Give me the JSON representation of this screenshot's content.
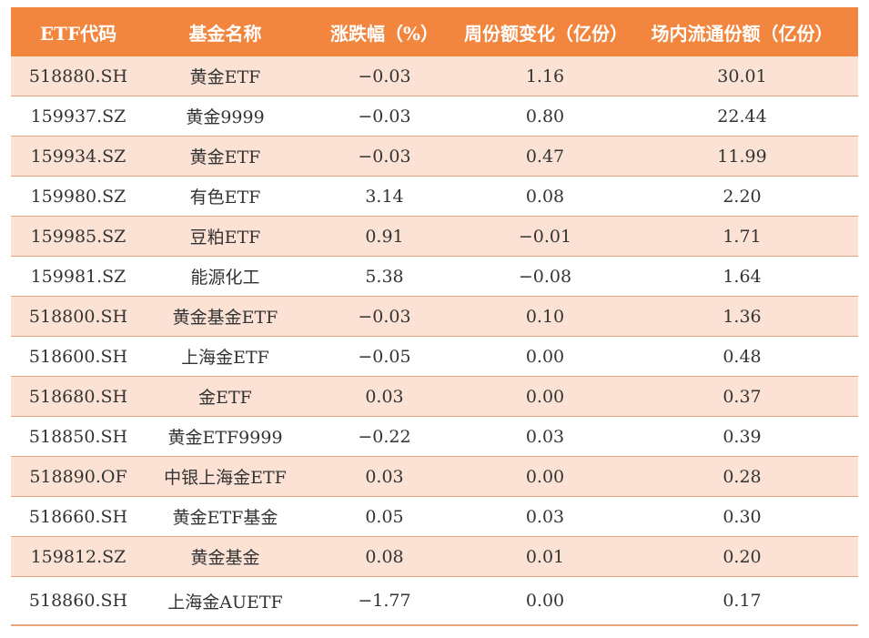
{
  "table": {
    "headers": [
      "ETF代码",
      "基金名称",
      "涨跌幅（%）",
      "周份额变化（亿份）",
      "场内流通份额（亿份）"
    ],
    "rows": [
      [
        "518880.SH",
        "黄金ETF",
        "−0.03",
        "1.16",
        "30.01"
      ],
      [
        "159937.SZ",
        "黄金9999",
        "−0.03",
        "0.80",
        "22.44"
      ],
      [
        "159934.SZ",
        "黄金ETF",
        "−0.03",
        "0.47",
        "11.99"
      ],
      [
        "159980.SZ",
        "有色ETF",
        "3.14",
        "0.08",
        "2.20"
      ],
      [
        "159985.SZ",
        "豆粕ETF",
        "0.91",
        "−0.01",
        "1.71"
      ],
      [
        "159981.SZ",
        "能源化工",
        "5.38",
        "−0.08",
        "1.64"
      ],
      [
        "518800.SH",
        "黄金基金ETF",
        "−0.03",
        "0.10",
        "1.36"
      ],
      [
        "518600.SH",
        "上海金ETF",
        "−0.05",
        "0.00",
        "0.48"
      ],
      [
        "518680.SH",
        "金ETF",
        "0.03",
        "0.00",
        "0.37"
      ],
      [
        "518850.SH",
        "黄金ETF9999",
        "−0.22",
        "0.03",
        "0.39"
      ],
      [
        "518890.OF",
        "中银上海金ETF",
        "0.03",
        "0.00",
        "0.28"
      ],
      [
        "518660.SH",
        "黄金ETF基金",
        "0.05",
        "0.03",
        "0.30"
      ],
      [
        "159812.SZ",
        "黄金基金",
        "0.08",
        "0.01",
        "0.20"
      ],
      [
        "518860.SH",
        "上海金AUETF",
        "−1.77",
        "0.00",
        "0.17"
      ]
    ]
  },
  "colors": {
    "header_bg": "#f2863f",
    "header_text": "#ffffff",
    "stripe_bg": "#fbe2d4",
    "row_divider": "#e8a47c"
  }
}
